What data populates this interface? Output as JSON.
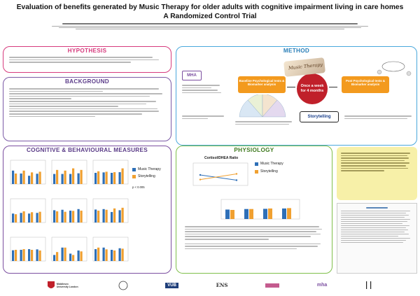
{
  "header": {
    "title_line1": "Evaluation of benefits generated by Music Therapy for older adults with cognitive impairment living in care homes",
    "title_line2": "A Randomized Control Trial"
  },
  "hypothesis": {
    "heading": "HYPOTHESIS"
  },
  "background": {
    "heading": "BACKGROUND"
  },
  "method": {
    "heading": "METHOD",
    "mha_logo": "MHA",
    "baseline_label": "Baseline Psychological tests & Biomarker analysis",
    "intervention_label": "Once a week for 4 months",
    "post_label": "Post Psychological tests & Biomarker analysis",
    "music_therapy_tag": "Music Therapy",
    "storytelling_tag": "Storytelling"
  },
  "cognitive": {
    "heading": "COGNITIVE & BEHAVIOURAL MEASURES",
    "legend_music": "Music Therapy",
    "legend_story": "Storytelling",
    "legend_p": "p < 0.005"
  },
  "physiology": {
    "heading": "PHYSIOLOGY",
    "chart_title": "Cortisol/DHEA Ratio",
    "legend_music": "Music Therapy",
    "legend_story": "Storytelling"
  },
  "colors": {
    "hypothesis_border": "#d63b7d",
    "background_border": "#7b5aa6",
    "method_border": "#4aa8dc",
    "cognitive_border": "#7b4fa0",
    "physiology_border": "#7fbf4a",
    "conclusion_fill": "#f7f0a8",
    "music_series": "#2e6fb7",
    "story_series": "#f0a030",
    "orange_box": "#f39a1e"
  },
  "chart_data": [
    {
      "type": "bar",
      "series": [
        {
          "name": "Music Therapy",
          "values": [
            60,
            47,
            37,
            46
          ]
        },
        {
          "name": "Storytelling",
          "values": [
            47,
            60,
            52,
            55
          ]
        }
      ]
    },
    {
      "type": "bar",
      "series": [
        {
          "name": "Music Therapy",
          "values": [
            45,
            45,
            45,
            48
          ]
        },
        {
          "name": "Storytelling",
          "values": [
            63,
            60,
            70,
            63
          ]
        }
      ]
    },
    {
      "type": "bar",
      "series": [
        {
          "name": "Music Therapy",
          "values": [
            50,
            52,
            50,
            53
          ]
        },
        {
          "name": "Storytelling",
          "values": [
            57,
            55,
            53,
            70
          ]
        }
      ]
    },
    {
      "type": "bar",
      "series": [
        {
          "name": "Music Therapy",
          "values": [
            40,
            43,
            40,
            43
          ]
        },
        {
          "name": "Storytelling",
          "values": [
            37,
            50,
            46,
            48
          ]
        }
      ]
    },
    {
      "type": "bar",
      "series": [
        {
          "name": "Music Therapy",
          "values": [
            55,
            57,
            53,
            60
          ]
        },
        {
          "name": "Storytelling",
          "values": [
            50,
            48,
            52,
            53
          ]
        }
      ]
    },
    {
      "type": "bar",
      "series": [
        {
          "name": "Music Therapy",
          "values": [
            58,
            60,
            47,
            55
          ]
        },
        {
          "name": "Storytelling",
          "values": [
            53,
            57,
            63,
            66
          ]
        }
      ]
    },
    {
      "type": "bar",
      "series": [
        {
          "name": "Music Therapy",
          "values": [
            48,
            50,
            53,
            52
          ]
        },
        {
          "name": "Storytelling",
          "values": [
            50,
            53,
            50,
            47
          ]
        }
      ]
    },
    {
      "type": "bar",
      "series": [
        {
          "name": "Music Therapy",
          "values": [
            27,
            60,
            33,
            47
          ]
        },
        {
          "name": "Storytelling",
          "values": [
            40,
            60,
            27,
            43
          ]
        }
      ]
    },
    {
      "type": "bar",
      "series": [
        {
          "name": "Music Therapy",
          "values": [
            53,
            60,
            50,
            57
          ]
        },
        {
          "name": "Storytelling",
          "values": [
            60,
            52,
            47,
            55
          ]
        }
      ]
    },
    {
      "type": "line",
      "series": [
        {
          "name": "Music Therapy",
          "values": [
            50,
            25
          ]
        },
        {
          "name": "Storytelling",
          "values": [
            28,
            55
          ]
        }
      ]
    },
    {
      "type": "bar",
      "series": [
        {
          "name": "Music Therapy",
          "values": [
            52,
            55,
            56,
            58
          ]
        },
        {
          "name": "Storytelling",
          "values": [
            50,
            55,
            58,
            60
          ]
        }
      ]
    }
  ],
  "logos": {
    "middlesex": "Middlesex University London",
    "vub": "VUB",
    "ens": "ENS",
    "mha": "mha"
  }
}
